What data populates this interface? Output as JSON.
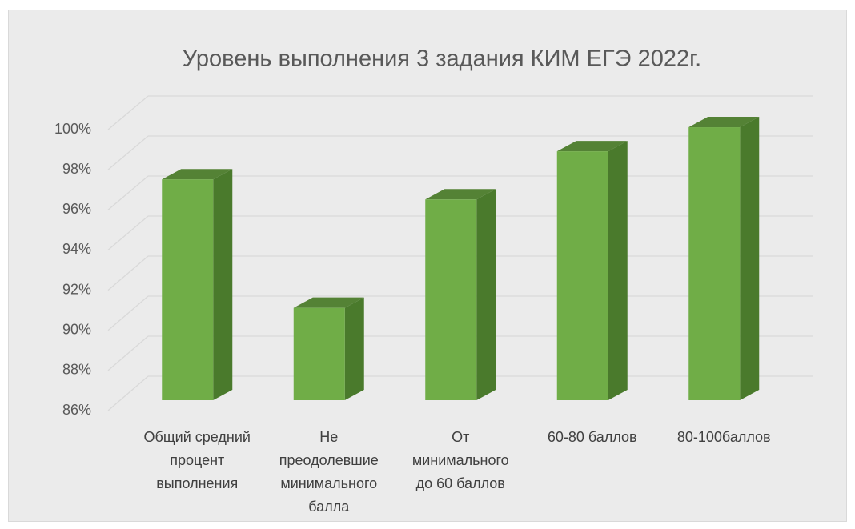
{
  "chart_data": {
    "type": "bar3d",
    "title": "Уровень выполнения 3 задания КИМ ЕГЭ 2022г.",
    "categories": [
      "Общий средний процент выполнения",
      "Не преодолевшие минимального балла",
      "От минимального до 60 баллов",
      "60-80 баллов",
      "80-100баллов"
    ],
    "values": [
      97,
      90.6,
      96,
      98.4,
      99.6
    ],
    "color": "#70ad47",
    "ylim": [
      86,
      100
    ],
    "yticks": [
      {
        "value": 86,
        "label": "86%"
      },
      {
        "value": 88,
        "label": "88%"
      },
      {
        "value": 90,
        "label": "90%"
      },
      {
        "value": 92,
        "label": "92%"
      },
      {
        "value": 94,
        "label": "94%"
      },
      {
        "value": 96,
        "label": "96%"
      },
      {
        "value": 98,
        "label": "98%"
      },
      {
        "value": 100,
        "label": "100%"
      }
    ],
    "grid": true
  }
}
